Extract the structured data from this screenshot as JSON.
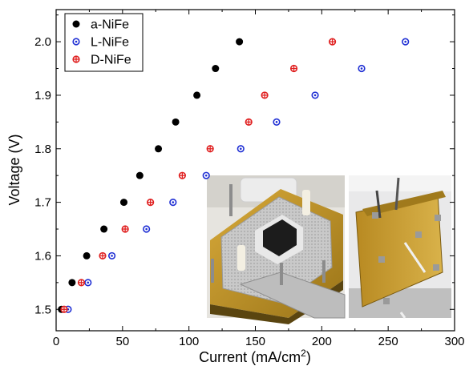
{
  "chart_data": {
    "type": "scatter",
    "xlabel": "Current (mA/cm",
    "xlabel_sup": "2",
    "xlabel_end": ")",
    "ylabel": "Voltage (V)",
    "xlim": [
      0,
      300
    ],
    "ylim": [
      1.46,
      2.06
    ],
    "x_ticks": [
      0,
      50,
      100,
      150,
      200,
      250,
      300
    ],
    "y_ticks": [
      1.5,
      1.6,
      1.7,
      1.8,
      1.9,
      2.0
    ],
    "y_tick_labels": [
      "1.5",
      "1.6",
      "1.7",
      "1.8",
      "1.9",
      "2.0"
    ],
    "grid": false,
    "legend_position": "top-left",
    "series": [
      {
        "name": "a-NiFe",
        "color": "#000000",
        "marker": "filled-circle",
        "points": [
          {
            "x": 4,
            "y": 1.5
          },
          {
            "x": 12,
            "y": 1.55
          },
          {
            "x": 23,
            "y": 1.6
          },
          {
            "x": 36,
            "y": 1.65
          },
          {
            "x": 51,
            "y": 1.7
          },
          {
            "x": 63,
            "y": 1.75
          },
          {
            "x": 77,
            "y": 1.8
          },
          {
            "x": 90,
            "y": 1.85
          },
          {
            "x": 106,
            "y": 1.9
          },
          {
            "x": 120,
            "y": 1.95
          },
          {
            "x": 138,
            "y": 2.0
          }
        ]
      },
      {
        "name": "L-NiFe",
        "color": "#1f2fd4",
        "marker": "circle-dot",
        "points": [
          {
            "x": 9,
            "y": 1.5
          },
          {
            "x": 24,
            "y": 1.55
          },
          {
            "x": 42,
            "y": 1.6
          },
          {
            "x": 68,
            "y": 1.65
          },
          {
            "x": 88,
            "y": 1.7
          },
          {
            "x": 113,
            "y": 1.75
          },
          {
            "x": 139,
            "y": 1.8
          },
          {
            "x": 166,
            "y": 1.85
          },
          {
            "x": 195,
            "y": 1.9
          },
          {
            "x": 230,
            "y": 1.95
          },
          {
            "x": 263,
            "y": 2.0
          }
        ]
      },
      {
        "name": "D-NiFe",
        "color": "#e02020",
        "marker": "circle-cross",
        "points": [
          {
            "x": 6,
            "y": 1.5
          },
          {
            "x": 19,
            "y": 1.55
          },
          {
            "x": 35,
            "y": 1.6
          },
          {
            "x": 52,
            "y": 1.65
          },
          {
            "x": 71,
            "y": 1.7
          },
          {
            "x": 95,
            "y": 1.75
          },
          {
            "x": 116,
            "y": 1.8
          },
          {
            "x": 145,
            "y": 1.85
          },
          {
            "x": 157,
            "y": 1.9
          },
          {
            "x": 179,
            "y": 1.95
          },
          {
            "x": 208,
            "y": 2.0
          }
        ]
      }
    ],
    "inset_photos": [
      {
        "name": "cell-top-view-photo",
        "description_icon": "electrolyzer-cell-top-photo"
      },
      {
        "name": "cell-side-view-photo",
        "description_icon": "electrolyzer-cell-side-photo"
      }
    ]
  }
}
